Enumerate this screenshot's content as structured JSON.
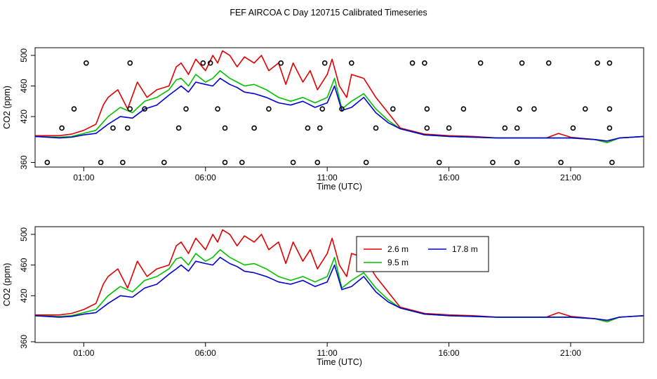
{
  "chart_data": {
    "type": "line",
    "title": "FEF AIRCOA C  Day 120715  Calibrated Timeseries",
    "x_unit": "hours (UTC)",
    "xlim": [
      -1.0,
      24.0
    ],
    "x_ticks": [
      1,
      6,
      11,
      16,
      21
    ],
    "x_tick_labels": [
      "01:00",
      "06:00",
      "11:00",
      "16:00",
      "21:00"
    ],
    "panels": [
      {
        "id": "top",
        "xlabel": "Time (UTC)",
        "ylabel": "CO2 (ppm)",
        "ylim": [
          354,
          510
        ],
        "y_ticks": [
          360,
          420,
          460,
          500
        ],
        "y_tick_labels": [
          "360",
          "420",
          "460",
          "500"
        ],
        "has_markers": true,
        "has_legend": false
      },
      {
        "id": "bottom",
        "xlabel": "Time (UTC)",
        "ylabel": "CO2 (ppm)",
        "ylim": [
          359,
          510
        ],
        "y_ticks": [
          360,
          420,
          460,
          500
        ],
        "y_tick_labels": [
          "360",
          "420",
          "460",
          "500"
        ],
        "has_markers": false,
        "has_legend": true
      }
    ],
    "series": [
      {
        "name": "2.6 m",
        "color": "#e00000",
        "points": [
          [
            -1.0,
            395
          ],
          [
            0.0,
            395
          ],
          [
            0.5,
            397
          ],
          [
            1.0,
            402
          ],
          [
            1.5,
            410
          ],
          [
            1.8,
            435
          ],
          [
            2.0,
            445
          ],
          [
            2.4,
            455
          ],
          [
            2.8,
            430
          ],
          [
            3.2,
            465
          ],
          [
            3.6,
            445
          ],
          [
            4.0,
            455
          ],
          [
            4.5,
            460
          ],
          [
            4.8,
            485
          ],
          [
            5.0,
            490
          ],
          [
            5.3,
            475
          ],
          [
            5.6,
            495
          ],
          [
            6.0,
            480
          ],
          [
            6.3,
            500
          ],
          [
            6.5,
            490
          ],
          [
            6.7,
            506
          ],
          [
            7.0,
            500
          ],
          [
            7.3,
            485
          ],
          [
            7.6,
            498
          ],
          [
            8.0,
            490
          ],
          [
            8.3,
            500
          ],
          [
            8.6,
            480
          ],
          [
            9.0,
            490
          ],
          [
            9.3,
            462
          ],
          [
            9.6,
            490
          ],
          [
            10.0,
            465
          ],
          [
            10.3,
            480
          ],
          [
            10.6,
            455
          ],
          [
            11.0,
            475
          ],
          [
            11.2,
            495
          ],
          [
            11.5,
            460
          ],
          [
            11.8,
            445
          ],
          [
            12.0,
            475
          ],
          [
            12.5,
            470
          ],
          [
            13.0,
            445
          ],
          [
            13.5,
            425
          ],
          [
            14.0,
            405
          ],
          [
            15.0,
            397
          ],
          [
            16.0,
            395
          ],
          [
            17.0,
            394
          ],
          [
            18.0,
            392
          ],
          [
            19.0,
            392
          ],
          [
            20.0,
            392
          ],
          [
            20.5,
            398
          ],
          [
            21.0,
            393
          ],
          [
            22.0,
            390
          ],
          [
            22.5,
            386
          ],
          [
            23.0,
            392
          ],
          [
            24.0,
            394
          ]
        ]
      },
      {
        "name": "9.5 m",
        "color": "#00c000",
        "points": [
          [
            -1.0,
            394
          ],
          [
            0.0,
            393
          ],
          [
            0.5,
            394
          ],
          [
            1.0,
            398
          ],
          [
            1.5,
            402
          ],
          [
            2.0,
            420
          ],
          [
            2.5,
            432
          ],
          [
            3.0,
            425
          ],
          [
            3.5,
            440
          ],
          [
            4.0,
            445
          ],
          [
            4.5,
            455
          ],
          [
            4.8,
            468
          ],
          [
            5.0,
            470
          ],
          [
            5.3,
            460
          ],
          [
            5.6,
            475
          ],
          [
            6.0,
            465
          ],
          [
            6.3,
            470
          ],
          [
            6.6,
            480
          ],
          [
            7.0,
            470
          ],
          [
            7.3,
            465
          ],
          [
            7.6,
            460
          ],
          [
            8.0,
            462
          ],
          [
            8.5,
            455
          ],
          [
            9.0,
            445
          ],
          [
            9.5,
            440
          ],
          [
            10.0,
            445
          ],
          [
            10.5,
            438
          ],
          [
            11.0,
            445
          ],
          [
            11.3,
            470
          ],
          [
            11.6,
            430
          ],
          [
            12.0,
            440
          ],
          [
            12.5,
            450
          ],
          [
            13.0,
            430
          ],
          [
            13.5,
            415
          ],
          [
            14.0,
            404
          ],
          [
            15.0,
            396
          ],
          [
            16.0,
            394
          ],
          [
            17.0,
            393
          ],
          [
            18.0,
            392
          ],
          [
            19.0,
            392
          ],
          [
            20.0,
            392
          ],
          [
            21.0,
            392
          ],
          [
            22.0,
            390
          ],
          [
            22.5,
            386
          ],
          [
            23.0,
            392
          ],
          [
            24.0,
            394
          ]
        ]
      },
      {
        "name": "17.8 m",
        "color": "#0000d0",
        "points": [
          [
            -1.0,
            394
          ],
          [
            0.0,
            392
          ],
          [
            0.5,
            393
          ],
          [
            1.0,
            396
          ],
          [
            1.5,
            398
          ],
          [
            2.0,
            410
          ],
          [
            2.5,
            420
          ],
          [
            3.0,
            418
          ],
          [
            3.5,
            430
          ],
          [
            4.0,
            435
          ],
          [
            4.5,
            448
          ],
          [
            4.8,
            455
          ],
          [
            5.0,
            460
          ],
          [
            5.3,
            452
          ],
          [
            5.6,
            465
          ],
          [
            6.0,
            462
          ],
          [
            6.3,
            460
          ],
          [
            6.6,
            470
          ],
          [
            7.0,
            462
          ],
          [
            7.3,
            458
          ],
          [
            7.6,
            452
          ],
          [
            8.0,
            450
          ],
          [
            8.5,
            445
          ],
          [
            9.0,
            438
          ],
          [
            9.5,
            435
          ],
          [
            10.0,
            440
          ],
          [
            10.5,
            432
          ],
          [
            11.0,
            438
          ],
          [
            11.3,
            460
          ],
          [
            11.6,
            428
          ],
          [
            12.0,
            432
          ],
          [
            12.5,
            445
          ],
          [
            13.0,
            425
          ],
          [
            13.5,
            412
          ],
          [
            14.0,
            404
          ],
          [
            15.0,
            396
          ],
          [
            16.0,
            394
          ],
          [
            17.0,
            393
          ],
          [
            18.0,
            392
          ],
          [
            19.0,
            392
          ],
          [
            20.0,
            392
          ],
          [
            21.0,
            392
          ],
          [
            22.0,
            390
          ],
          [
            22.5,
            388
          ],
          [
            23.0,
            392
          ],
          [
            24.0,
            394
          ]
        ]
      }
    ],
    "markers": {
      "panel": "top",
      "symbol": "open-circle",
      "points": [
        [
          -0.5,
          360
        ],
        [
          0.1,
          405
        ],
        [
          0.6,
          430
        ],
        [
          1.1,
          490
        ],
        [
          1.7,
          360
        ],
        [
          2.2,
          405
        ],
        [
          2.6,
          360
        ],
        [
          2.8,
          405
        ],
        [
          2.9,
          430
        ],
        [
          2.9,
          490
        ],
        [
          3.5,
          430
        ],
        [
          4.3,
          360
        ],
        [
          4.9,
          405
        ],
        [
          5.2,
          430
        ],
        [
          5.9,
          490
        ],
        [
          6.2,
          490
        ],
        [
          6.5,
          430
        ],
        [
          6.8,
          360
        ],
        [
          6.8,
          405
        ],
        [
          7.5,
          360
        ],
        [
          8.0,
          405
        ],
        [
          8.6,
          430
        ],
        [
          9.1,
          490
        ],
        [
          9.6,
          360
        ],
        [
          10.2,
          405
        ],
        [
          10.6,
          360
        ],
        [
          10.7,
          405
        ],
        [
          10.8,
          430
        ],
        [
          10.9,
          490
        ],
        [
          11.6,
          430
        ],
        [
          12.0,
          490
        ],
        [
          12.6,
          360
        ],
        [
          13.0,
          405
        ],
        [
          13.7,
          430
        ],
        [
          14.5,
          490
        ],
        [
          15.0,
          490
        ],
        [
          15.1,
          405
        ],
        [
          15.1,
          430
        ],
        [
          15.6,
          360
        ],
        [
          16.0,
          405
        ],
        [
          16.6,
          430
        ],
        [
          17.3,
          490
        ],
        [
          17.8,
          360
        ],
        [
          18.3,
          405
        ],
        [
          18.8,
          360
        ],
        [
          18.8,
          405
        ],
        [
          18.9,
          430
        ],
        [
          19.0,
          490
        ],
        [
          19.5,
          430
        ],
        [
          20.1,
          490
        ],
        [
          20.6,
          360
        ],
        [
          21.1,
          405
        ],
        [
          21.6,
          430
        ],
        [
          22.1,
          490
        ],
        [
          22.6,
          490
        ],
        [
          22.6,
          405
        ],
        [
          22.6,
          430
        ],
        [
          22.7,
          360
        ]
      ]
    },
    "legend": {
      "placement": "top-center",
      "entries": [
        {
          "label": "2.6 m",
          "color": "#e00000"
        },
        {
          "label": "17.8 m",
          "color": "#0000d0"
        },
        {
          "label": "9.5 m",
          "color": "#00c000"
        }
      ]
    }
  }
}
